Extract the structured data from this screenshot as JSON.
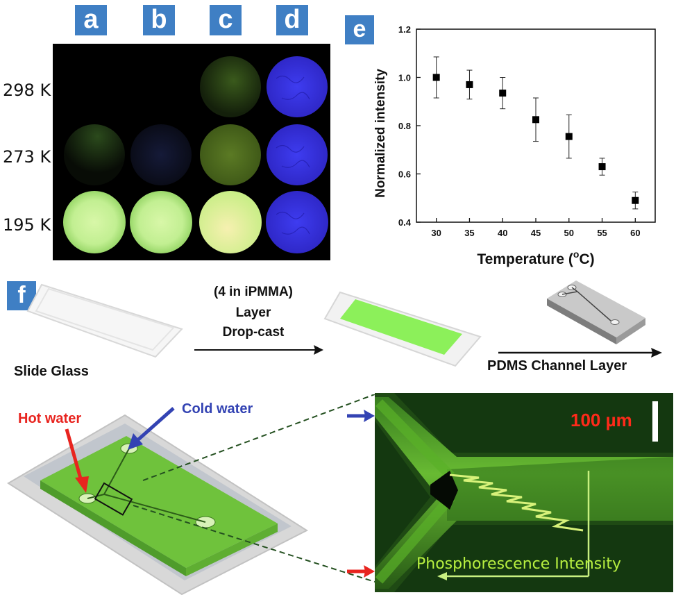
{
  "panels": {
    "a": "a",
    "b": "b",
    "c": "c",
    "d": "d",
    "e": "e",
    "f": "f"
  },
  "rows": [
    "298 K",
    "273 K",
    "195 K"
  ],
  "chart_data": {
    "type": "scatter",
    "xlabel": "Temperature (",
    "xlabel_sup": "o",
    "xlabel_unit": "C)",
    "ylabel": "Normalized intensity",
    "x": [
      30,
      35,
      40,
      45,
      50,
      55,
      60
    ],
    "y": [
      1.0,
      0.97,
      0.935,
      0.825,
      0.755,
      0.63,
      0.49
    ],
    "err": [
      0.085,
      0.06,
      0.065,
      0.09,
      0.09,
      0.035,
      0.035
    ],
    "xlim": [
      27,
      63
    ],
    "ylim": [
      0.4,
      1.2
    ],
    "xticks": [
      "30",
      "35",
      "40",
      "45",
      "50",
      "55",
      "60"
    ],
    "yticks": [
      "0.4",
      "0.6",
      "0.8",
      "1.0",
      "1.2"
    ],
    "marker": "filled-square",
    "color": "#000000"
  },
  "process": {
    "step1": "(4 in iPMMA)",
    "step2": "Layer",
    "step3": "Drop-cast",
    "slide": "Slide Glass",
    "pdms": "PDMS Channel Layer"
  },
  "device": {
    "hot": "Hot water",
    "cold": "Cold water",
    "scale": "100 µm",
    "intensity": "Phosphorescence Intensity"
  },
  "colors": {
    "tag": "#3f7fc4",
    "green": "#8bea3a",
    "hot": "#e8241f",
    "cold": "#3343b3",
    "blue_disc": "#3b35d8"
  }
}
